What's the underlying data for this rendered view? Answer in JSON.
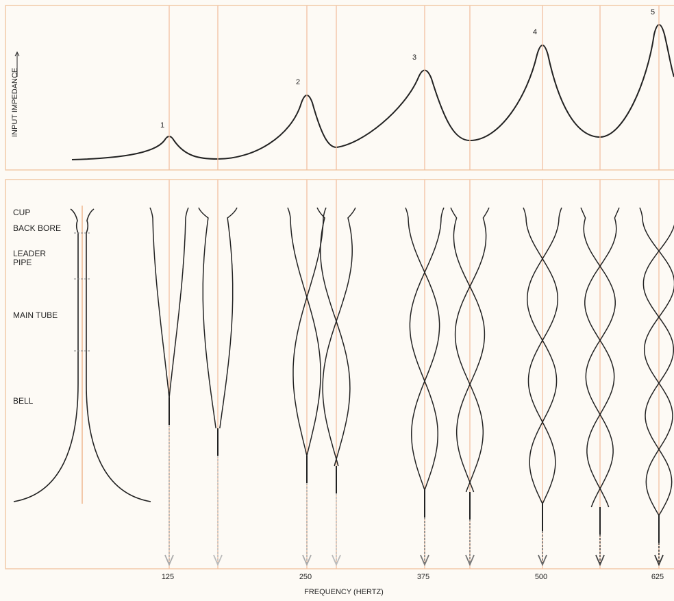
{
  "y_axis_label": "INPUT IMPEDANCE",
  "peak_labels": [
    "1",
    "2",
    "3",
    "4",
    "5"
  ],
  "part_labels": [
    "CUP",
    "BACK BORE",
    "LEADER PIPE",
    "MAIN TUBE",
    "BELL"
  ],
  "frequency_labels": [
    "125",
    "250",
    "375",
    "500",
    "625"
  ],
  "x_axis_title": "FREQUENCY (HERTZ)"
}
